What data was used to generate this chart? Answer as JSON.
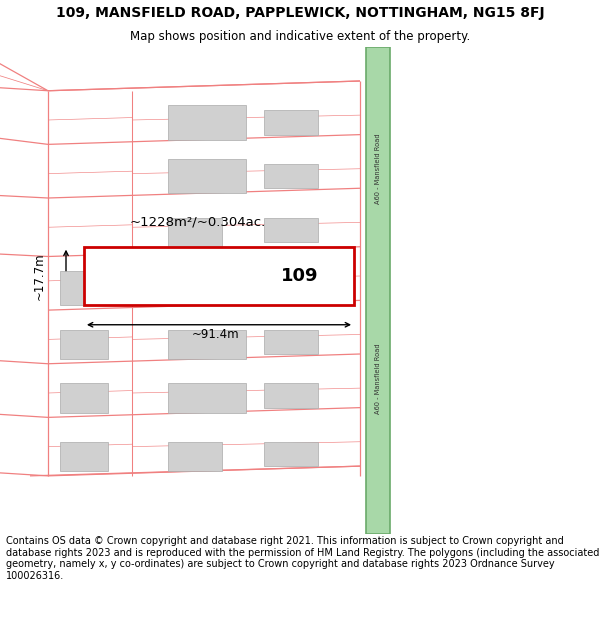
{
  "title": "109, MANSFIELD ROAD, PAPPLEWICK, NOTTINGHAM, NG15 8FJ",
  "subtitle": "Map shows position and indicative extent of the property.",
  "footer": "Contains OS data © Crown copyright and database right 2021. This information is subject to Crown copyright and database rights 2023 and is reproduced with the permission of HM Land Registry. The polygons (including the associated geometry, namely x, y co-ordinates) are subject to Crown copyright and database rights 2023 Ordnance Survey 100026316.",
  "bg_color": "#ffffff",
  "map_bg": "#ffffff",
  "road_fill": "#a8d8a8",
  "road_border": "#6aaa6a",
  "plot_line_color": "#f08080",
  "highlight_color": "#cc0000",
  "building_color": "#d0d0d0",
  "building_edge": "#aaaaaa",
  "area_text": "~1228m²/~0.304ac.",
  "width_text": "~91.4m",
  "height_text": "~17.7m",
  "number_text": "109",
  "road_label": "A60 - Mansfield Road",
  "title_fontsize": 10,
  "subtitle_fontsize": 8.5,
  "footer_fontsize": 7
}
